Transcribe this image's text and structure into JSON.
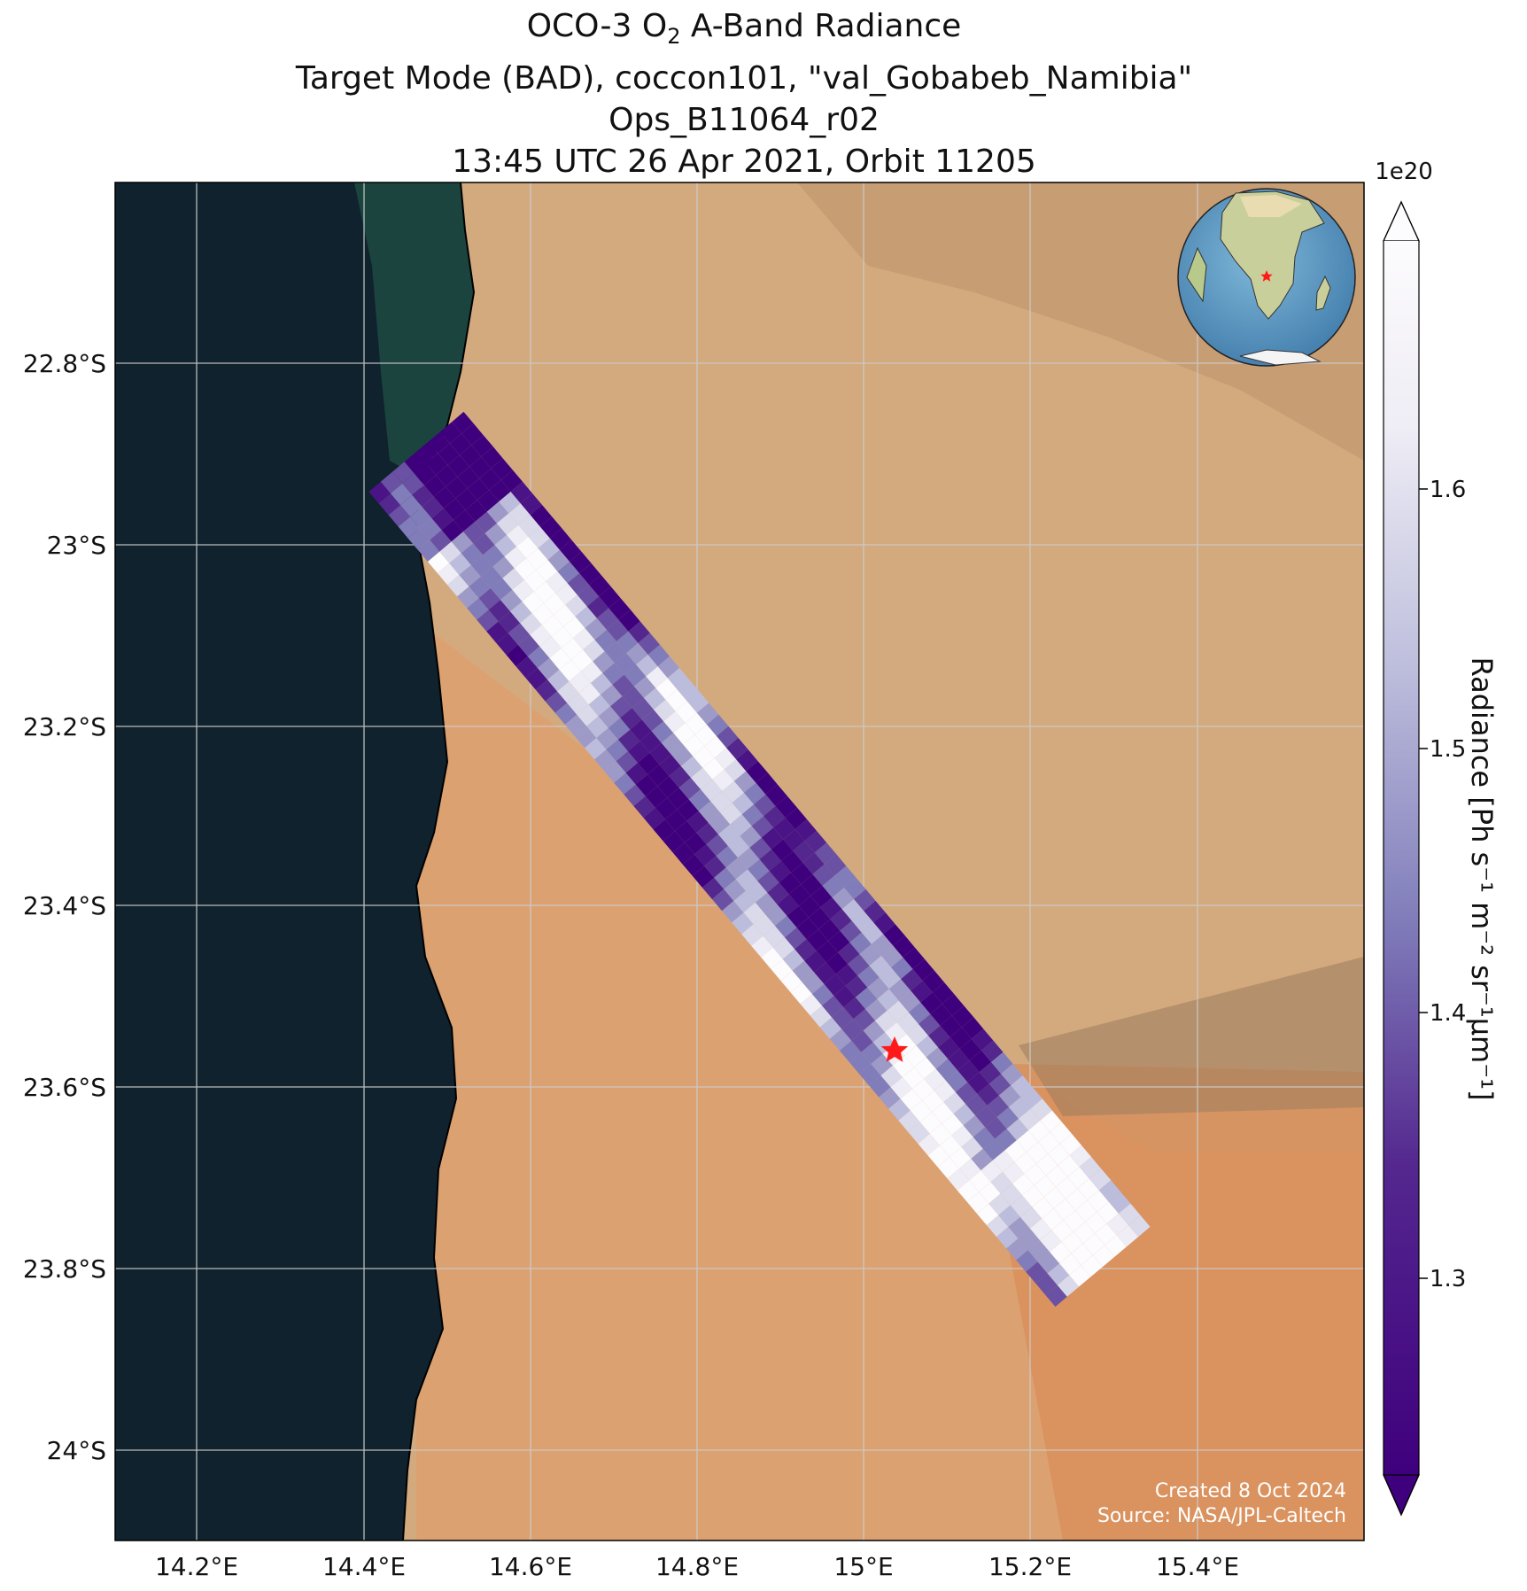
{
  "title": {
    "line1_prefix": "OCO-3 O",
    "line1_sub": "2",
    "line1_suffix": " A-Band Radiance",
    "line2": "Target Mode (BAD), coccon101, \"val_Gobabeb_Namibia\"",
    "line3": "Ops_B11064_r02",
    "line4": "13:45 UTC 26 Apr 2021, Orbit 11205"
  },
  "map": {
    "lon_ticks": [
      "14.2°E",
      "14.4°E",
      "14.6°E",
      "14.8°E",
      "15°E",
      "15.2°E",
      "15.4°E"
    ],
    "lat_ticks": [
      "22.8°S",
      "23°S",
      "23.2°S",
      "23.4°S",
      "23.6°S",
      "23.8°S",
      "24°S"
    ],
    "target_marker_color": "#ff1a1a",
    "ocean_color": "#10222e",
    "desert_color": "#d7a878"
  },
  "colorbar": {
    "exponent": "1e20",
    "ticks": [
      "1.6",
      "1.5",
      "1.4",
      "1.3"
    ],
    "label": "Radiance [Ph s⁻¹ m⁻² sr⁻¹μm⁻¹]",
    "colormap": "Purples",
    "extend": "both"
  },
  "credits": {
    "created": "Created 8 Oct 2024",
    "source": "Source: NASA/JPL-Caltech"
  },
  "inset_globe": {
    "marker_color": "#ff1a1a"
  }
}
